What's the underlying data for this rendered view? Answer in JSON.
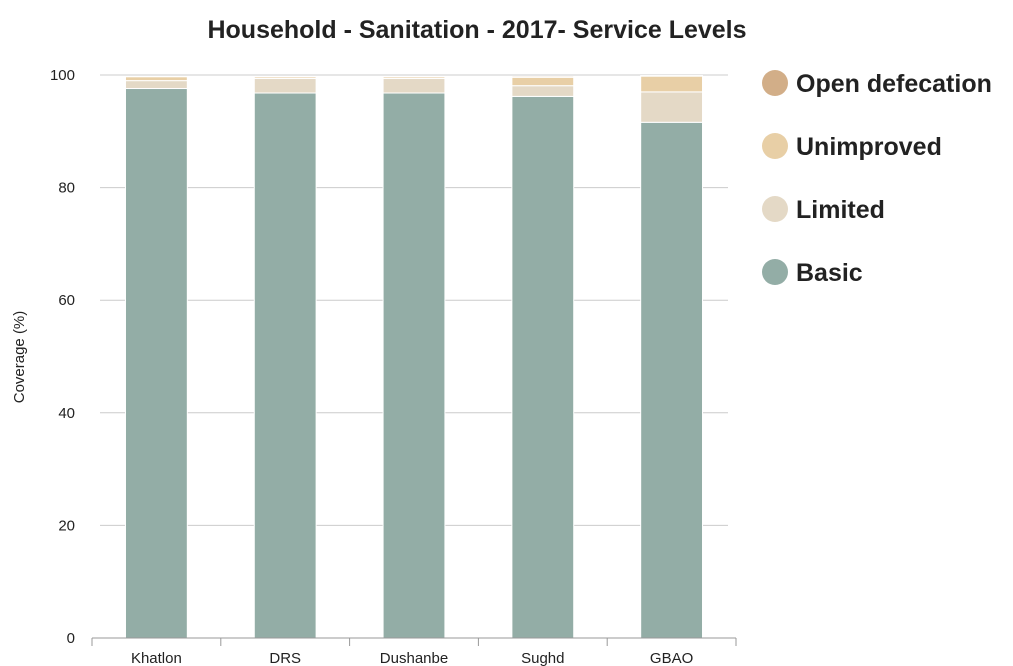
{
  "chart_data": {
    "type": "bar",
    "stacked": true,
    "title": "Household - Sanitation - 2017- Service Levels",
    "xlabel": "",
    "ylabel": "Coverage (%)",
    "ylim": [
      0,
      100
    ],
    "yticks": [
      "0",
      "20",
      "40",
      "60",
      "80",
      "100"
    ],
    "grid": true,
    "legend_position": "right",
    "categories": [
      "Khatlon",
      "DRS",
      "Dushanbe",
      "Sughd",
      "GBAO"
    ],
    "series": [
      {
        "name": "Basic",
        "color": "#93ada6",
        "values": [
          97.6,
          96.8,
          96.8,
          96.2,
          91.6
        ]
      },
      {
        "name": "Limited",
        "color": "#e4d9c6",
        "values": [
          1.4,
          2.6,
          2.6,
          1.9,
          5.4
        ]
      },
      {
        "name": "Unimproved",
        "color": "#e8cfa6",
        "values": [
          0.7,
          0.3,
          0.3,
          1.5,
          2.8
        ]
      },
      {
        "name": "Open defecation",
        "color": "#d2ae88",
        "values": [
          0.1,
          0.1,
          0.1,
          0.2,
          0.1
        ]
      }
    ],
    "legend_order": [
      "Open defecation",
      "Unimproved",
      "Limited",
      "Basic"
    ]
  }
}
